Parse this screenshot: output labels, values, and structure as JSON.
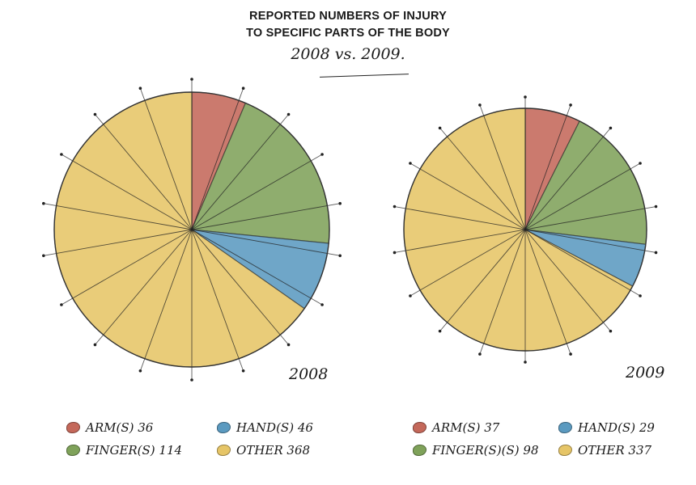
{
  "title": {
    "line1": "REPORTED NUMBERS OF INJURY",
    "line2": "TO SPECIFIC PARTS OF THE BODY",
    "subtitle": "2008 vs. 2009."
  },
  "colors": {
    "arm": "#c4685a",
    "finger": "#7fa25a",
    "hand": "#5b9ac0",
    "other": "#e6c567"
  },
  "chart_data": [
    {
      "type": "pie",
      "year_label": "2008",
      "start_angle": "12 o'clock",
      "direction": "clockwise",
      "categories": [
        "ARM(S)",
        "FINGER(S)",
        "HAND(S)",
        "OTHER"
      ],
      "values": [
        36,
        114,
        46,
        368
      ],
      "legend": [
        {
          "key": "arm",
          "label": "ARM(S) 36"
        },
        {
          "key": "hand",
          "label": "HAND(S) 46"
        },
        {
          "key": "finger",
          "label": "FINGER(S) 114"
        },
        {
          "key": "other",
          "label": "OTHER 368"
        }
      ]
    },
    {
      "type": "pie",
      "year_label": "2009",
      "start_angle": "12 o'clock",
      "direction": "clockwise",
      "categories": [
        "ARM(S)",
        "FINGER(S)",
        "HAND(S)",
        "OTHER"
      ],
      "values": [
        37,
        98,
        29,
        337
      ],
      "legend": [
        {
          "key": "arm",
          "label": "ARM(S) 37"
        },
        {
          "key": "hand",
          "label": "HAND(S) 29"
        },
        {
          "key": "finger",
          "label": "FINGER(S)(S) 98"
        },
        {
          "key": "other",
          "label": "OTHER 337"
        }
      ]
    }
  ]
}
